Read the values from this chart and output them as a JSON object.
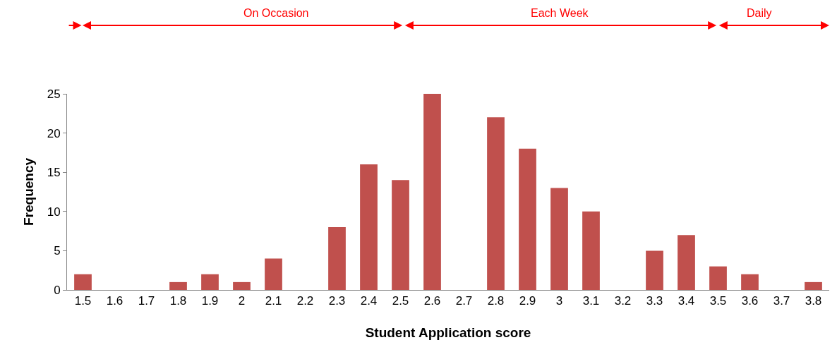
{
  "chart_data": {
    "type": "bar",
    "xlabel": "Student Application score",
    "ylabel": "Frequency",
    "categories": [
      "1.5",
      "1.6",
      "1.7",
      "1.8",
      "1.9",
      "2",
      "2.1",
      "2.2",
      "2.3",
      "2.4",
      "2.5",
      "2.6",
      "2.7",
      "2.8",
      "2.9",
      "3",
      "3.1",
      "3.2",
      "3.3",
      "3.4",
      "3.5",
      "3.6",
      "3.7",
      "3.8"
    ],
    "values": [
      2,
      0,
      0,
      1,
      2,
      1,
      4,
      0,
      8,
      16,
      14,
      25,
      0,
      22,
      18,
      13,
      10,
      0,
      5,
      7,
      3,
      2,
      0,
      1
    ],
    "color": "#c0504d",
    "ylim": [
      0,
      25
    ],
    "yticks": [
      0,
      5,
      10,
      15,
      20,
      25
    ],
    "grid": false,
    "annotations": [
      "On Occasion",
      "Each Week",
      "Daily"
    ]
  }
}
